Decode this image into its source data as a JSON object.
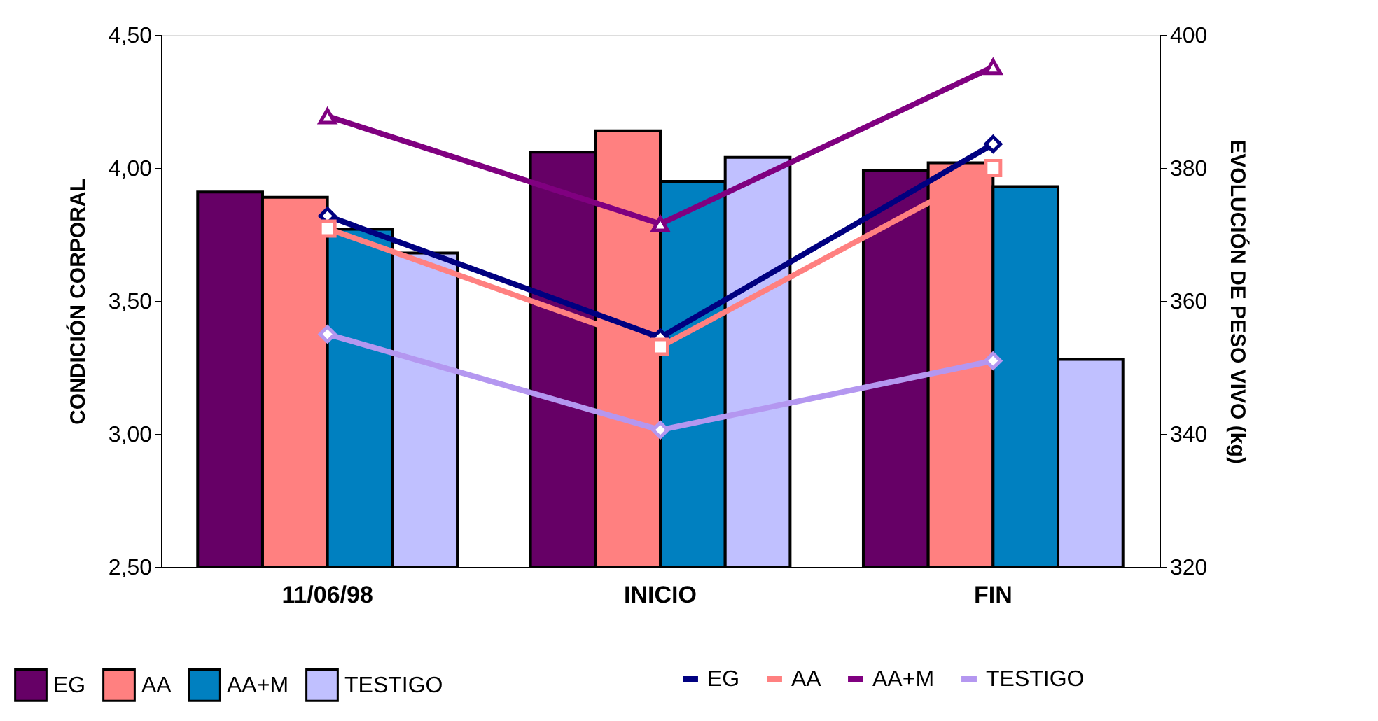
{
  "chart_data": {
    "type": "bar",
    "categories": [
      "11/06/98",
      "INICIO",
      "FIN"
    ],
    "ylabel": "CONDICIÓN CORPORAL",
    "y2label": "EVOLUCIÓN DE PESO VIVO (kg)",
    "ylim": [
      2.5,
      4.5
    ],
    "yticks": [
      {
        "value": 2.5,
        "label": "2,50"
      },
      {
        "value": 3.0,
        "label": "3,00"
      },
      {
        "value": 3.5,
        "label": "3,50"
      },
      {
        "value": 4.0,
        "label": "4,00"
      },
      {
        "value": 4.5,
        "label": "4,50"
      }
    ],
    "y2lim": [
      320,
      400
    ],
    "y2ticks": [
      320,
      340,
      360,
      380,
      400
    ],
    "grid": false,
    "legend": "bottom",
    "series": [
      {
        "name": "EG",
        "color": "#660066",
        "values": [
          3.91,
          4.06,
          3.99
        ]
      },
      {
        "name": "AA",
        "color": "#ff8080",
        "values": [
          3.89,
          4.14,
          4.02
        ]
      },
      {
        "name": "AA+M",
        "color": "#0080c0",
        "values": [
          3.77,
          3.95,
          3.93
        ]
      },
      {
        "name": "TESTIGO",
        "color": "#c0c0ff",
        "values": [
          3.68,
          4.04,
          3.28
        ]
      },
      {
        "name": "EG",
        "type": "line",
        "axis": "y2",
        "marker": "diamond",
        "color": "#000080",
        "values": [
          372.8,
          354.5,
          383.6
        ]
      },
      {
        "name": "AA",
        "type": "line",
        "axis": "y2",
        "marker": "square",
        "color": "#ff8080",
        "values": [
          370.9,
          353.1,
          380.0
        ]
      },
      {
        "name": "AA+M",
        "type": "line",
        "axis": "y2",
        "marker": "triangle",
        "color": "#800080",
        "values": [
          387.8,
          371.6,
          395.2
        ]
      },
      {
        "name": "TESTIGO",
        "type": "line",
        "axis": "y2",
        "marker": "diamond",
        "color": "#b497f0",
        "values": [
          355.0,
          340.6,
          351.0
        ]
      }
    ]
  }
}
